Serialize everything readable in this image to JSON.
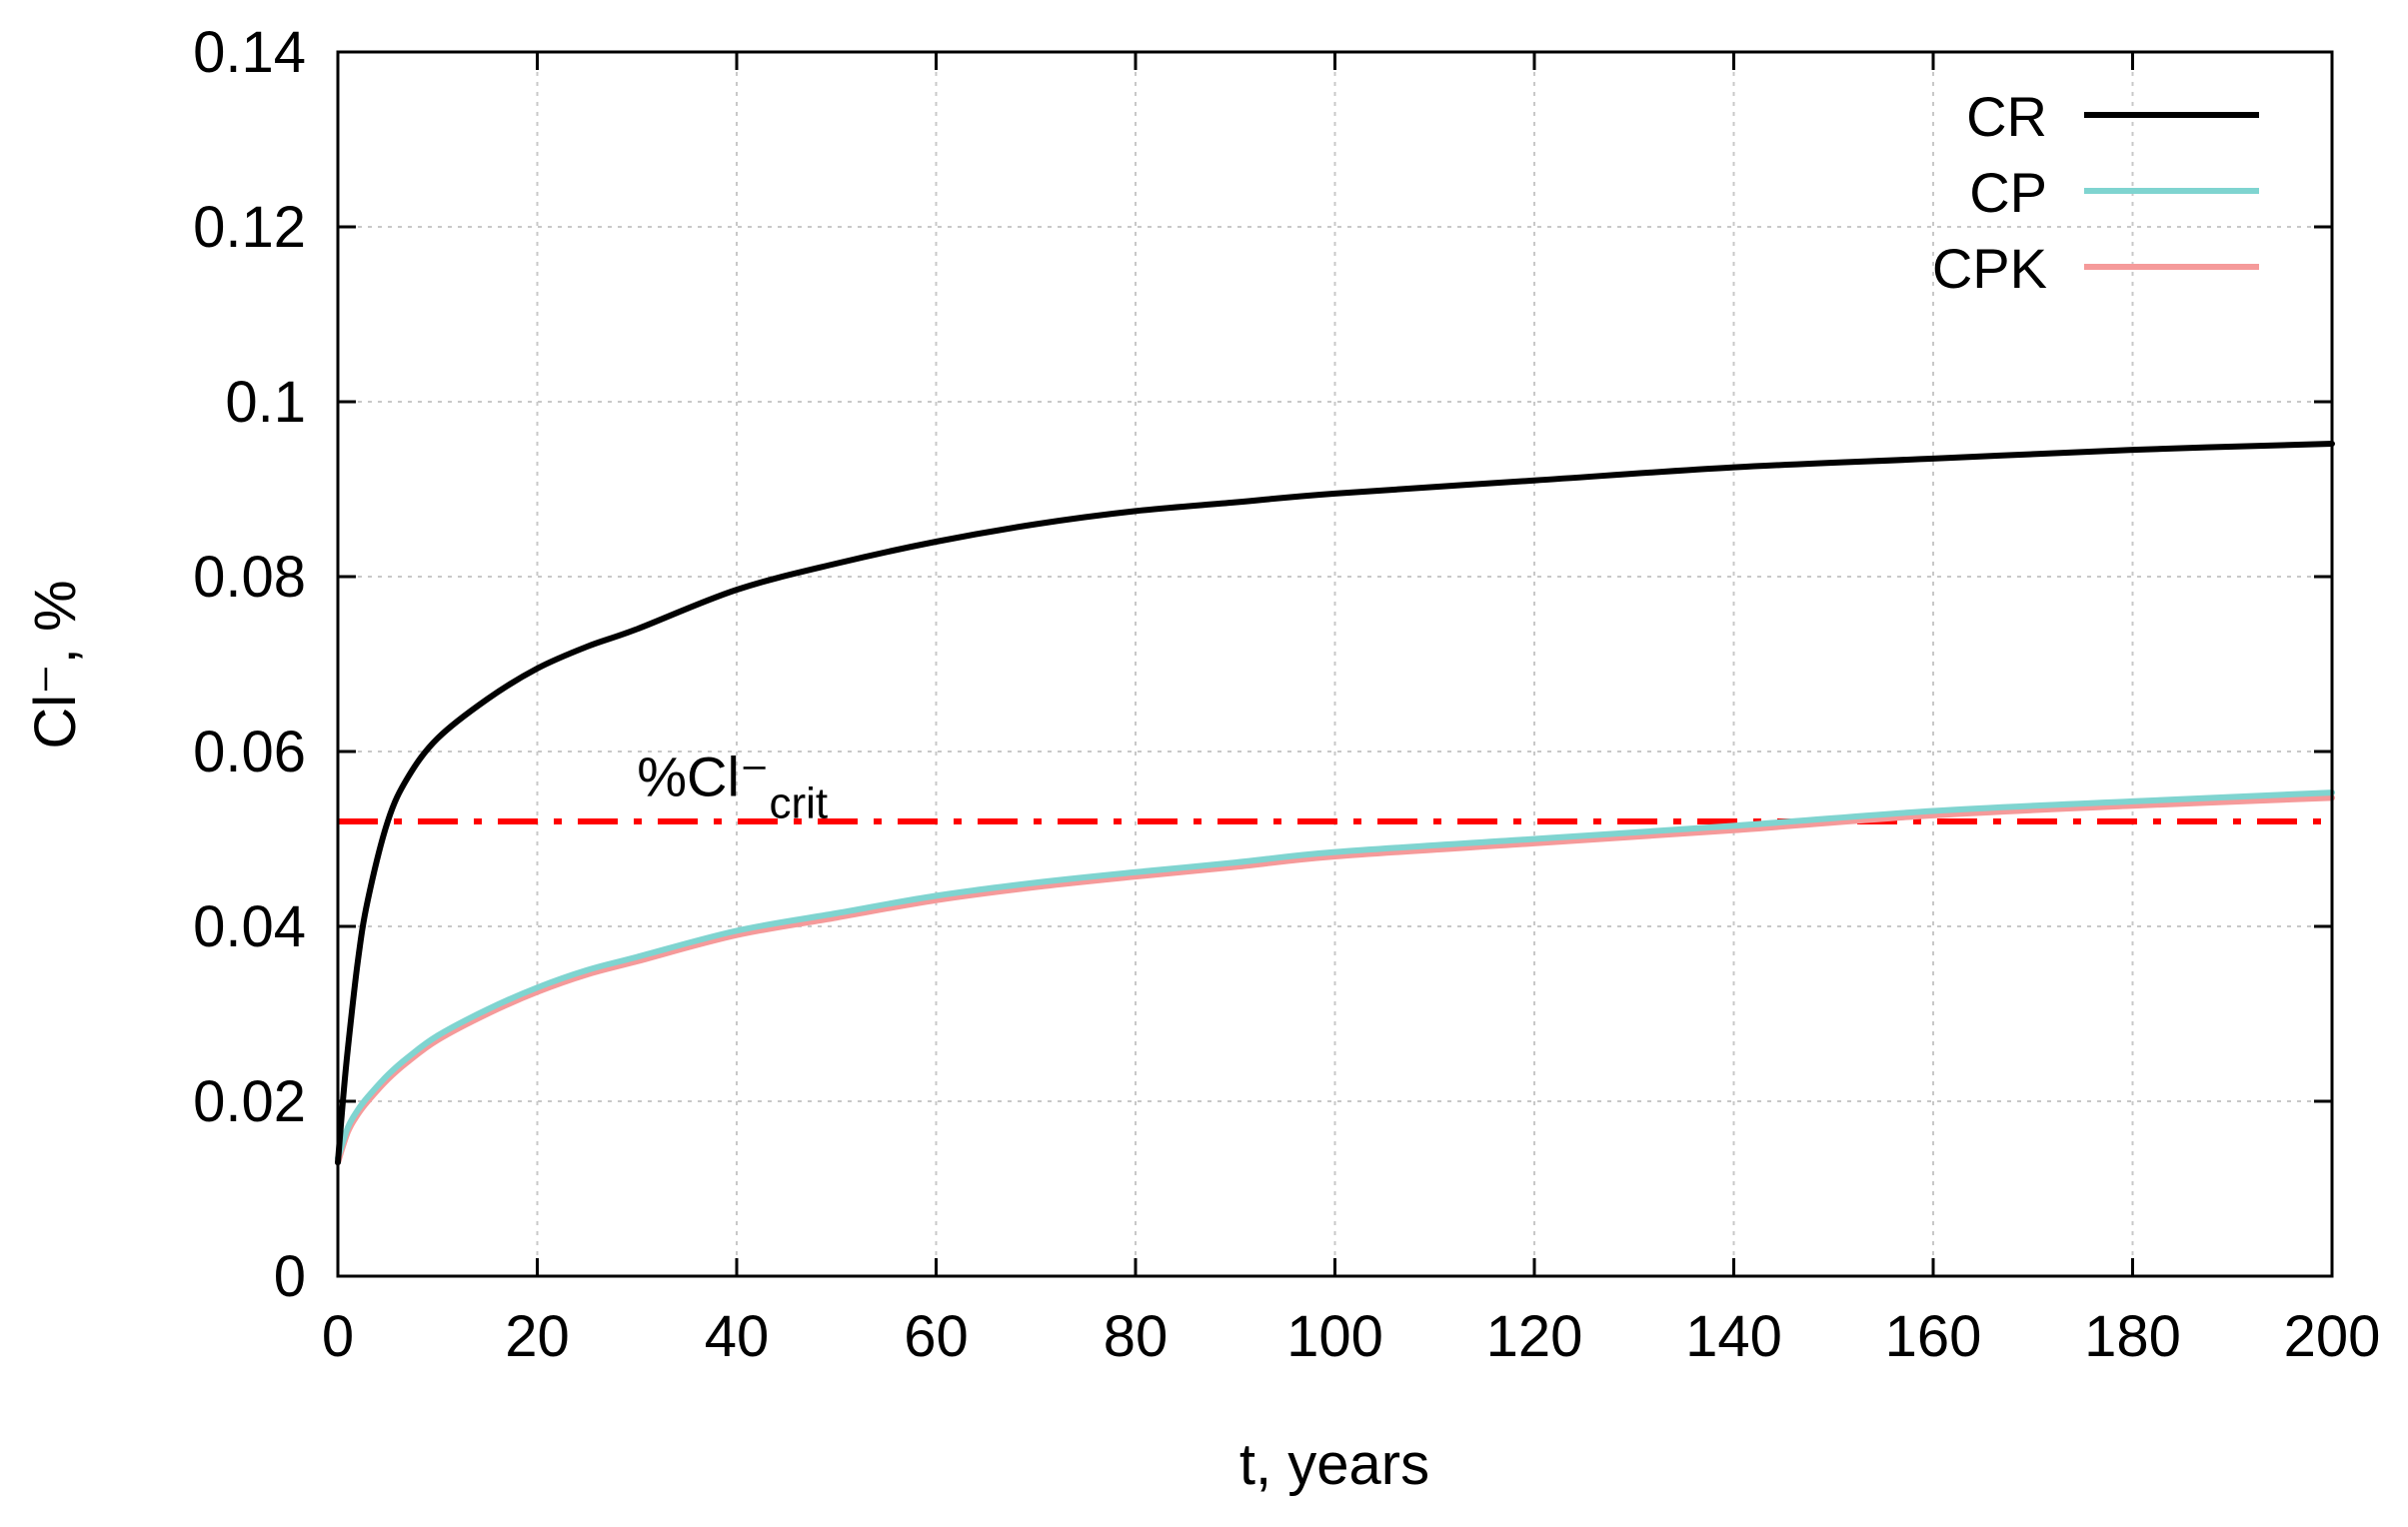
{
  "chart_data": {
    "type": "line",
    "title": "",
    "xlabel": "t, years",
    "ylabel": "Cl⁻, %",
    "xlim": [
      0,
      200
    ],
    "ylim": [
      0,
      0.14
    ],
    "xticks": [
      0,
      20,
      40,
      60,
      80,
      100,
      120,
      140,
      160,
      180,
      200
    ],
    "xtick_labels": [
      "0",
      "20",
      "40",
      "60",
      "80",
      "100",
      "120",
      "140",
      "160",
      "180",
      "200"
    ],
    "yticks": [
      0,
      0.02,
      0.04,
      0.06,
      0.08,
      0.1,
      0.12,
      0.14
    ],
    "ytick_labels": [
      "0",
      "0.02",
      "0.04",
      "0.06",
      "0.08",
      "0.1",
      "0.12",
      "0.14"
    ],
    "grid": true,
    "legend_position": "top-right",
    "series": [
      {
        "name": "CR",
        "color": "#000000",
        "x": [
          0,
          0.5,
          1,
          2,
          3,
          5,
          7,
          10,
          15,
          20,
          25,
          30,
          40,
          50,
          60,
          70,
          80,
          90,
          100,
          120,
          140,
          160,
          180,
          200
        ],
        "y": [
          0.013,
          0.02,
          0.026,
          0.036,
          0.043,
          0.052,
          0.057,
          0.0615,
          0.066,
          0.0695,
          0.072,
          0.074,
          0.0785,
          0.0815,
          0.084,
          0.086,
          0.0875,
          0.0885,
          0.0895,
          0.091,
          0.0925,
          0.0935,
          0.0945,
          0.0952
        ]
      },
      {
        "name": "CP",
        "color": "#7fd4d0",
        "x": [
          0,
          1,
          2,
          3,
          5,
          7,
          10,
          15,
          20,
          25,
          30,
          40,
          50,
          60,
          70,
          80,
          90,
          100,
          120,
          140,
          160,
          180,
          200
        ],
        "y": [
          0.0135,
          0.017,
          0.019,
          0.0205,
          0.023,
          0.025,
          0.0275,
          0.0305,
          0.033,
          0.035,
          0.0365,
          0.0395,
          0.0415,
          0.0435,
          0.045,
          0.0462,
          0.0473,
          0.0485,
          0.05,
          0.0515,
          0.0532,
          0.0543,
          0.0553
        ]
      },
      {
        "name": "CPK",
        "color": "#f59a9a",
        "x": [
          0,
          1,
          2,
          3,
          5,
          7,
          10,
          15,
          20,
          25,
          30,
          40,
          50,
          60,
          70,
          80,
          90,
          100,
          120,
          140,
          160,
          180,
          200
        ],
        "y": [
          0.013,
          0.0165,
          0.0185,
          0.02,
          0.0225,
          0.0245,
          0.027,
          0.03,
          0.0325,
          0.0345,
          0.036,
          0.039,
          0.041,
          0.043,
          0.0445,
          0.0457,
          0.0468,
          0.048,
          0.0495,
          0.051,
          0.0527,
          0.0538,
          0.0547
        ]
      }
    ],
    "threshold": {
      "name": "%Cl⁻crit",
      "label_main": "%Cl⁻",
      "label_sub": "crit",
      "value": 0.052,
      "color": "#ff0000",
      "label_x": 30,
      "label_y": 0.057
    }
  }
}
